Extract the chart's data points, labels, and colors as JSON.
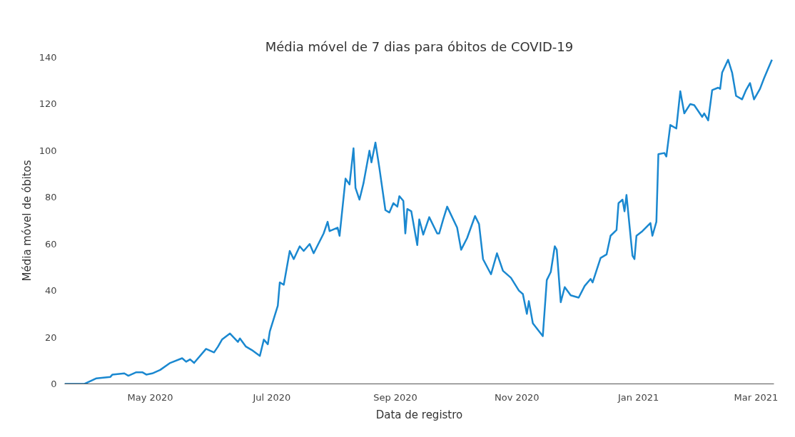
{
  "chart_data": {
    "type": "line",
    "title": "Média móvel de 7 dias para óbitos de COVID-19",
    "xlabel": "Data de registro",
    "ylabel": "Média móvel de óbitos",
    "series": [
      {
        "color": "#1a88d0",
        "x": [
          "2020-03-19",
          "2020-03-29",
          "2020-04-04",
          "2020-04-11",
          "2020-04-12",
          "2020-04-18",
          "2020-04-20",
          "2020-04-24",
          "2020-04-27",
          "2020-04-29",
          "2020-05-02",
          "2020-05-06",
          "2020-05-11",
          "2020-05-17",
          "2020-05-19",
          "2020-05-21",
          "2020-05-23",
          "2020-05-29",
          "2020-06-02",
          "2020-06-04",
          "2020-06-06",
          "2020-06-10",
          "2020-06-14",
          "2020-06-15",
          "2020-06-18",
          "2020-06-21",
          "2020-06-25",
          "2020-06-27",
          "2020-06-29",
          "2020-06-30",
          "2020-07-04",
          "2020-07-05",
          "2020-07-07",
          "2020-07-10",
          "2020-07-12",
          "2020-07-15",
          "2020-07-17",
          "2020-07-20",
          "2020-07-22",
          "2020-07-27",
          "2020-07-29",
          "2020-07-30",
          "2020-08-03",
          "2020-08-04",
          "2020-08-07",
          "2020-08-09",
          "2020-08-11",
          "2020-08-12",
          "2020-08-14",
          "2020-08-16",
          "2020-08-19",
          "2020-08-20",
          "2020-08-22",
          "2020-08-24",
          "2020-08-27",
          "2020-08-29",
          "2020-08-31",
          "2020-09-02",
          "2020-09-03",
          "2020-09-05",
          "2020-09-06",
          "2020-09-07",
          "2020-09-09",
          "2020-09-12",
          "2020-09-13",
          "2020-09-15",
          "2020-09-18",
          "2020-09-22",
          "2020-09-23",
          "2020-09-25",
          "2020-09-27",
          "2020-10-02",
          "2020-10-04",
          "2020-10-07",
          "2020-10-11",
          "2020-10-13",
          "2020-10-15",
          "2020-10-19",
          "2020-10-22",
          "2020-10-25",
          "2020-10-29",
          "2020-11-02",
          "2020-11-04",
          "2020-11-06",
          "2020-11-07",
          "2020-11-09",
          "2020-11-14",
          "2020-11-16",
          "2020-11-18",
          "2020-11-20",
          "2020-11-21",
          "2020-11-23",
          "2020-11-25",
          "2020-11-28",
          "2020-12-02",
          "2020-12-05",
          "2020-12-08",
          "2020-12-09",
          "2020-12-13",
          "2020-12-16",
          "2020-12-18",
          "2020-12-21",
          "2020-12-22",
          "2020-12-24",
          "2020-12-25",
          "2020-12-26",
          "2020-12-29",
          "2020-12-30",
          "2020-12-31",
          "2021-01-03",
          "2021-01-07",
          "2021-01-08",
          "2021-01-10",
          "2021-01-11",
          "2021-01-14",
          "2021-01-15",
          "2021-01-17",
          "2021-01-20",
          "2021-01-22",
          "2021-01-24",
          "2021-01-27",
          "2021-01-29",
          "2021-02-02",
          "2021-02-03",
          "2021-02-05",
          "2021-02-07",
          "2021-02-10",
          "2021-02-11",
          "2021-02-12",
          "2021-02-15",
          "2021-02-17",
          "2021-02-19",
          "2021-02-22",
          "2021-02-24",
          "2021-02-26",
          "2021-02-28",
          "2021-03-03",
          "2021-03-05",
          "2021-03-07",
          "2021-03-09"
        ],
        "values": [
          0,
          0,
          2.4,
          3,
          4,
          4.5,
          3.5,
          5,
          5,
          4,
          4.5,
          6,
          9,
          11,
          9.5,
          10.5,
          9,
          15,
          13.5,
          16,
          19,
          21.6,
          18,
          19.5,
          16,
          14.5,
          12,
          19,
          17,
          22.5,
          33.5,
          43.5,
          42.5,
          57,
          53.5,
          59,
          57,
          60,
          56,
          64.5,
          69.5,
          65.5,
          67,
          63.5,
          88,
          85.5,
          101,
          84,
          79,
          86,
          100,
          95,
          103.5,
          92.5,
          74.5,
          73.5,
          77.5,
          76,
          80.5,
          78.5,
          64.5,
          75,
          74,
          59.5,
          70.5,
          64,
          71.5,
          64.5,
          64.5,
          70.5,
          76,
          67,
          57.5,
          62.5,
          72,
          68.5,
          53.5,
          47,
          56,
          48.5,
          45.5,
          40,
          38.5,
          30,
          35.5,
          26,
          20.5,
          44.5,
          48,
          59,
          57.5,
          35,
          41.5,
          38,
          37,
          42,
          45,
          43.5,
          54,
          55.5,
          63.5,
          66,
          77.5,
          79,
          74,
          81,
          55,
          53.5,
          63.5,
          65.5,
          69,
          63.5,
          69.5,
          98.5,
          99,
          97.5,
          111,
          109.5,
          125.5,
          116,
          120,
          119.5,
          114.5,
          116,
          113,
          126,
          127,
          126.5,
          133.5,
          139,
          133.5,
          123.5,
          122,
          126,
          129,
          122,
          126.5,
          131,
          135,
          139
        ]
      }
    ],
    "xlim": [
      "2020-03-19",
      "2021-03-10"
    ],
    "xticks": [
      {
        "value": "2020-05-01",
        "label": "May 2020"
      },
      {
        "value": "2020-07-01",
        "label": "Jul 2020"
      },
      {
        "value": "2020-09-01",
        "label": "Sep 2020"
      },
      {
        "value": "2020-11-01",
        "label": "Nov 2020"
      },
      {
        "value": "2021-01-01",
        "label": "Jan 2021"
      },
      {
        "value": "2021-03-01",
        "label": "Mar 2021"
      }
    ],
    "ylim": [
      0,
      140
    ],
    "yticks": [
      0,
      20,
      40,
      60,
      80,
      100,
      120,
      140
    ],
    "grid": false,
    "marker": "none",
    "line_style": "solid"
  }
}
